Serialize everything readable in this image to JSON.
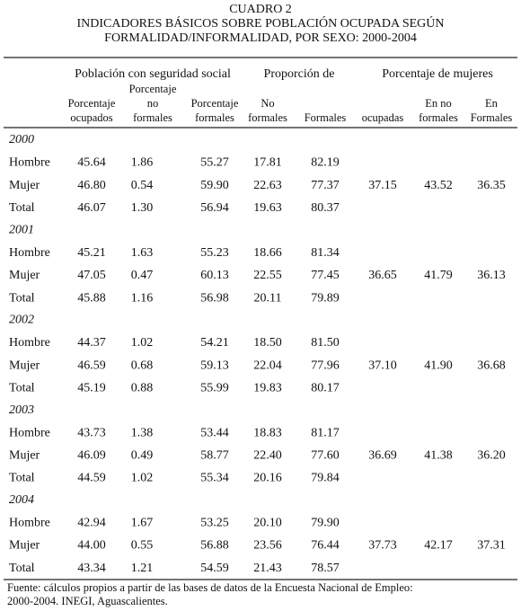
{
  "title": [
    "CUADRO 2",
    "INDICADORES BÁSICOS SOBRE POBLACIÓN OCUPADA SEGÚN",
    "FORMALIDAD/INFORMALIDAD, POR SEXO: 2000-2004"
  ],
  "table": {
    "groups": [
      "Población con seguridad social",
      "Proporción de",
      "Porcentaje de mujeres"
    ],
    "columns": [
      [
        "Porcentaje",
        "ocupados"
      ],
      [
        "Porcentaje",
        "no",
        "formales"
      ],
      [
        "Porcentaje",
        "formales"
      ],
      [
        "No",
        "formales"
      ],
      [
        "Formales"
      ],
      [
        "ocupadas"
      ],
      [
        "En no",
        "formales"
      ],
      [
        "En",
        "Formales"
      ]
    ],
    "sections": [
      {
        "year": "2000",
        "rows": [
          {
            "label": "Hombre",
            "values": [
              "45.64",
              "1.86",
              "55.27",
              "17.81",
              "82.19",
              null,
              null,
              null
            ]
          },
          {
            "label": "Mujer",
            "values": [
              "46.80",
              "0.54",
              "59.90",
              "22.63",
              "77.37",
              "37.15",
              "43.52",
              "36.35"
            ]
          },
          {
            "label": "Total",
            "values": [
              "46.07",
              "1.30",
              "56.94",
              "19.63",
              "80.37",
              null,
              null,
              null
            ]
          }
        ]
      },
      {
        "year": "2001",
        "rows": [
          {
            "label": "Hombre",
            "values": [
              "45.21",
              "1.63",
              "55.23",
              "18.66",
              "81.34",
              null,
              null,
              null
            ]
          },
          {
            "label": "Mujer",
            "values": [
              "47.05",
              "0.47",
              "60.13",
              "22.55",
              "77.45",
              "36.65",
              "41.79",
              "36.13"
            ]
          },
          {
            "label": "Total",
            "values": [
              "45.88",
              "1.16",
              "56.98",
              "20.11",
              "79.89",
              null,
              null,
              null
            ]
          }
        ]
      },
      {
        "year": "2002",
        "rows": [
          {
            "label": "Hombre",
            "values": [
              "44.37",
              "1.02",
              "54.21",
              "18.50",
              "81.50",
              null,
              null,
              null
            ]
          },
          {
            "label": "Mujer",
            "values": [
              "46.59",
              "0.68",
              "59.13",
              "22.04",
              "77.96",
              "37.10",
              "41.90",
              "36.68"
            ]
          },
          {
            "label": "Total",
            "values": [
              "45.19",
              "0.88",
              "55.99",
              "19.83",
              "80.17",
              null,
              null,
              null
            ]
          }
        ]
      },
      {
        "year": "2003",
        "rows": [
          {
            "label": "Hombre",
            "values": [
              "43.73",
              "1.38",
              "53.44",
              "18.83",
              "81.17",
              null,
              null,
              null
            ]
          },
          {
            "label": "Mujer",
            "values": [
              "46.09",
              "0.49",
              "58.77",
              "22.40",
              "77.60",
              "36.69",
              "41.38",
              "36.20"
            ]
          },
          {
            "label": "Total",
            "values": [
              "44.59",
              "1.02",
              "55.34",
              "20.16",
              "79.84",
              null,
              null,
              null
            ]
          }
        ]
      },
      {
        "year": "2004",
        "rows": [
          {
            "label": "Hombre",
            "values": [
              "42.94",
              "1.67",
              "53.25",
              "20.10",
              "79.90",
              null,
              null,
              null
            ]
          },
          {
            "label": "Mujer",
            "values": [
              "44.00",
              "0.55",
              "56.88",
              "23.56",
              "76.44",
              "37.73",
              "42.17",
              "37.31"
            ]
          },
          {
            "label": "Total",
            "values": [
              "43.34",
              "1.21",
              "54.59",
              "21.43",
              "78.57",
              null,
              null,
              null
            ]
          }
        ]
      }
    ]
  },
  "footnote": [
    "Fuente: cálculos propios a partir de las bases de datos de la Encuesta Nacional de Empleo:",
    "2000-2004. INEGI, Aguascalientes."
  ]
}
